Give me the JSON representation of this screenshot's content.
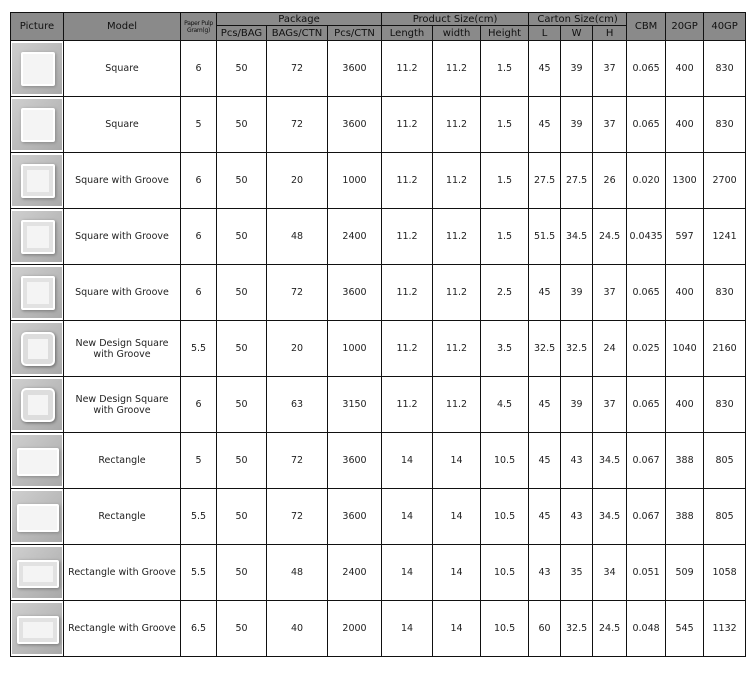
{
  "headers": {
    "picture": "Picture",
    "model": "Model",
    "paper_pulp": "Paper Pulp Gram(g)",
    "package": "Package",
    "pcs_bag": "Pcs/BAG",
    "bags_ctn": "BAGs/CTN",
    "pcs_ctn": "Pcs/CTN",
    "product_size": "Product Size(cm)",
    "length": "Length",
    "width": "width",
    "height": "Height",
    "carton_size": "Carton Size(cm)",
    "l": "L",
    "w": "W",
    "h": "H",
    "cbm": "CBM",
    "gp20": "20GP",
    "gp40": "40GP"
  },
  "rows": [
    {
      "picture": "square-tray",
      "model": "Square",
      "gram": "6",
      "pcs_bag": "50",
      "bags_ctn": "72",
      "pcs_ctn": "3600",
      "length": "11.2",
      "width": "11.2",
      "height": "1.5",
      "l": "45",
      "w": "39",
      "h": "37",
      "cbm": "0.065",
      "gp20": "400",
      "gp40": "830"
    },
    {
      "picture": "square-tray",
      "model": "Square",
      "gram": "5",
      "pcs_bag": "50",
      "bags_ctn": "72",
      "pcs_ctn": "3600",
      "length": "11.2",
      "width": "11.2",
      "height": "1.5",
      "l": "45",
      "w": "39",
      "h": "37",
      "cbm": "0.065",
      "gp20": "400",
      "gp40": "830"
    },
    {
      "picture": "groove-tray",
      "model": "Square with Groove",
      "gram": "6",
      "pcs_bag": "50",
      "bags_ctn": "20",
      "pcs_ctn": "1000",
      "length": "11.2",
      "width": "11.2",
      "height": "1.5",
      "l": "27.5",
      "w": "27.5",
      "h": "26",
      "cbm": "0.020",
      "gp20": "1300",
      "gp40": "2700"
    },
    {
      "picture": "groove-tray",
      "model": "Square with Groove",
      "gram": "6",
      "pcs_bag": "50",
      "bags_ctn": "48",
      "pcs_ctn": "2400",
      "length": "11.2",
      "width": "11.2",
      "height": "1.5",
      "l": "51.5",
      "w": "34.5",
      "h": "24.5",
      "cbm": "0.0435",
      "gp20": "597",
      "gp40": "1241"
    },
    {
      "picture": "groove-tray",
      "model": "Square with Groove",
      "gram": "6",
      "pcs_bag": "50",
      "bags_ctn": "72",
      "pcs_ctn": "3600",
      "length": "11.2",
      "width": "11.2",
      "height": "2.5",
      "l": "45",
      "w": "39",
      "h": "37",
      "cbm": "0.065",
      "gp20": "400",
      "gp40": "830"
    },
    {
      "picture": "new-design-tray",
      "model": "New Design Square with Groove",
      "gram": "5.5",
      "pcs_bag": "50",
      "bags_ctn": "20",
      "pcs_ctn": "1000",
      "length": "11.2",
      "width": "11.2",
      "height": "3.5",
      "l": "32.5",
      "w": "32.5",
      "h": "24",
      "cbm": "0.025",
      "gp20": "1040",
      "gp40": "2160"
    },
    {
      "picture": "new-design-tray",
      "model": "New Design Square with Groove",
      "gram": "6",
      "pcs_bag": "50",
      "bags_ctn": "63",
      "pcs_ctn": "3150",
      "length": "11.2",
      "width": "11.2",
      "height": "4.5",
      "l": "45",
      "w": "39",
      "h": "37",
      "cbm": "0.065",
      "gp20": "400",
      "gp40": "830"
    },
    {
      "picture": "rectangle-tray",
      "model": "Rectangle",
      "gram": "5",
      "pcs_bag": "50",
      "bags_ctn": "72",
      "pcs_ctn": "3600",
      "length": "14",
      "width": "14",
      "height": "10.5",
      "l": "45",
      "w": "43",
      "h": "34.5",
      "cbm": "0.067",
      "gp20": "388",
      "gp40": "805"
    },
    {
      "picture": "rectangle-tray",
      "model": "Rectangle",
      "gram": "5.5",
      "pcs_bag": "50",
      "bags_ctn": "72",
      "pcs_ctn": "3600",
      "length": "14",
      "width": "14",
      "height": "10.5",
      "l": "45",
      "w": "43",
      "h": "34.5",
      "cbm": "0.067",
      "gp20": "388",
      "gp40": "805"
    },
    {
      "picture": "rectangle-groove-tray",
      "model": "Rectangle with Groove",
      "gram": "5.5",
      "pcs_bag": "50",
      "bags_ctn": "48",
      "pcs_ctn": "2400",
      "length": "14",
      "width": "14",
      "height": "10.5",
      "l": "43",
      "w": "35",
      "h": "34",
      "cbm": "0.051",
      "gp20": "509",
      "gp40": "1058"
    },
    {
      "picture": "rectangle-groove-tray",
      "model": "Rectangle with Groove",
      "gram": "6.5",
      "pcs_bag": "50",
      "bags_ctn": "40",
      "pcs_ctn": "2000",
      "length": "14",
      "width": "14",
      "height": "10.5",
      "l": "60",
      "w": "32.5",
      "h": "24.5",
      "cbm": "0.048",
      "gp20": "545",
      "gp40": "1132"
    }
  ]
}
